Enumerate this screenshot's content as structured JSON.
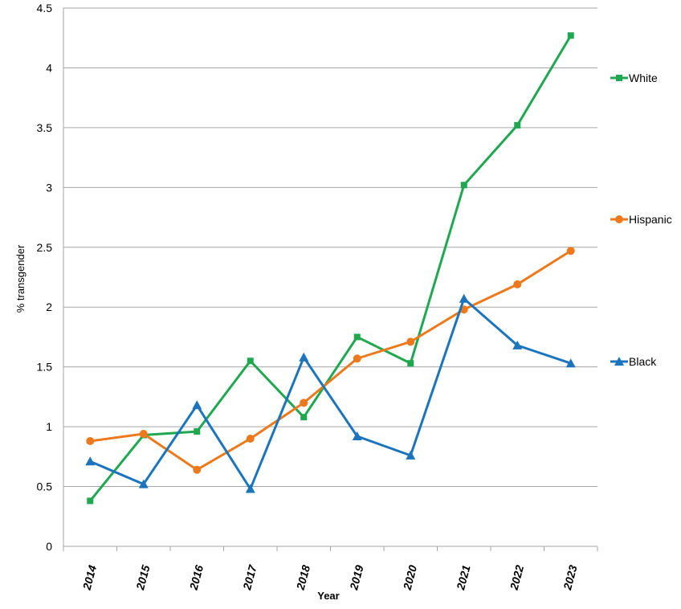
{
  "chart_data": {
    "type": "line",
    "title": "",
    "xlabel": "Year",
    "ylabel": "% transgender",
    "ylim": [
      0,
      4.5
    ],
    "yticks": [
      "0",
      "0.5",
      "1",
      "1.5",
      "2",
      "2.5",
      "3",
      "3.5",
      "4",
      "4.5"
    ],
    "ytick_values": [
      0,
      0.5,
      1,
      1.5,
      2,
      2.5,
      3,
      3.5,
      4,
      4.5
    ],
    "grid": true,
    "legend": "right",
    "categories": [
      "2014",
      "2015",
      "2016",
      "2017",
      "2018",
      "2019",
      "2020",
      "2021",
      "2022",
      "2023"
    ],
    "series": [
      {
        "name": "White",
        "color": "#1fa84f",
        "marker": "square",
        "values": [
          0.38,
          0.93,
          0.96,
          1.55,
          1.08,
          1.75,
          1.53,
          3.02,
          3.52,
          4.27
        ]
      },
      {
        "name": "Hispanic",
        "color": "#ec7a1c",
        "marker": "circle",
        "values": [
          0.88,
          0.94,
          0.64,
          0.9,
          1.2,
          1.57,
          1.71,
          1.98,
          2.19,
          2.47
        ]
      },
      {
        "name": "Black",
        "color": "#1c75bc",
        "marker": "triangle",
        "values": [
          0.71,
          0.52,
          1.18,
          0.48,
          1.58,
          0.92,
          0.76,
          2.07,
          1.68,
          1.53
        ]
      }
    ]
  }
}
